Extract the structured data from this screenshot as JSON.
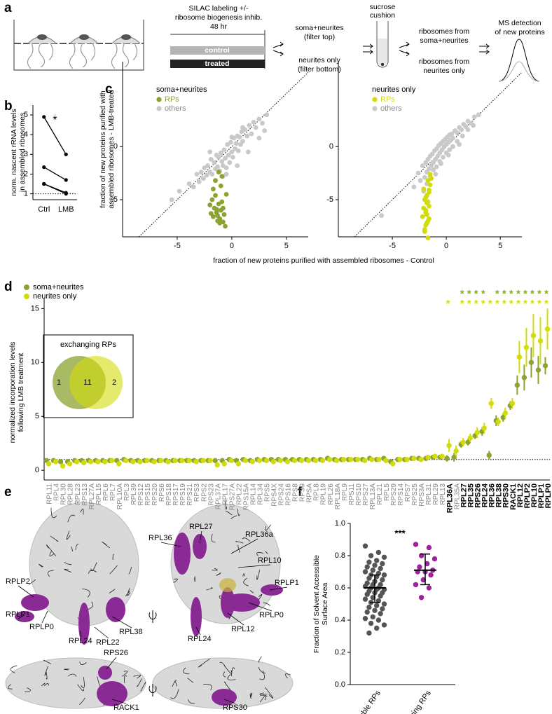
{
  "panel_labels": [
    "a",
    "b",
    "c",
    "d",
    "e",
    "f"
  ],
  "schematic": {
    "labeling": [
      "SILAC labeling +/-",
      "ribosome biogenesis inhib.",
      "48 hr"
    ],
    "conditions": [
      "control",
      "treated"
    ],
    "fractions": [
      [
        "soma+neurites",
        "(filter top)"
      ],
      [
        "neurites only",
        "(filter bottom)"
      ]
    ],
    "cushion": [
      "sucrose",
      "cushion"
    ],
    "ribosomes": [
      [
        "ribosomes from",
        "soma+neurites"
      ],
      [
        "ribosomes from",
        "neurites only"
      ]
    ],
    "detection": [
      "MS detection",
      "of new proteins"
    ]
  },
  "chart_data": [
    {
      "type": "line",
      "y_label": [
        "norm. nascent rRNA levels",
        "in assembled ribosomes"
      ],
      "categories": [
        "Ctrl",
        "LMB"
      ],
      "color": "#000000",
      "series": [
        {
          "values": [
            4.9,
            3.0
          ]
        },
        {
          "values": [
            2.35,
            1.7
          ]
        },
        {
          "values": [
            1.5,
            1.05
          ]
        },
        {
          "values": [
            1.5,
            1.0
          ]
        }
      ],
      "ylim": [
        0.7,
        5.5
      ],
      "yticks": [
        1,
        2,
        3,
        4,
        5
      ],
      "reference_line": 1,
      "annotation": "*"
    },
    {
      "type": "scatter",
      "title": "soma+neurites",
      "x_label": "fraction of new proteins purified with assembled ribosomes - Control",
      "y_label": [
        "fraction of new proteins purified with",
        "assembled ribosomes - LMB-treated"
      ],
      "series": [
        {
          "name": "RPs",
          "color": "#8ba32f",
          "x": [
            -2.0,
            -1.9,
            -1.8,
            -1.7,
            -1.6,
            -1.5,
            -1.4,
            -1.3,
            -1.2,
            -1.1,
            -1.0,
            -0.9,
            -0.8,
            -0.7,
            -0.6,
            -1.5,
            -1.2,
            -0.9,
            -1.7,
            -1.0,
            -0.5,
            -1.3,
            -0.8,
            -1.1,
            -1.4
          ],
          "values": [
            -5.5,
            -6.3,
            -5.0,
            -6.6,
            -5.8,
            -4.6,
            -6.2,
            -7.0,
            -5.4,
            -6.8,
            -6.0,
            -5.2,
            -7.1,
            -6.4,
            -7.5,
            -3.2,
            -2.4,
            -2.8,
            -4.0,
            -3.7,
            -4.5,
            -6.5,
            -5.8,
            -7.2,
            -5.9
          ]
        },
        {
          "name": "others",
          "color": "#c9c9c9",
          "x": [
            -5.5,
            -4.8,
            -3.9,
            -3.5,
            -3.2,
            -3.0,
            -2.8,
            -2.6,
            -2.5,
            -2.3,
            -2.2,
            -2.0,
            -1.9,
            -1.8,
            -1.6,
            -1.5,
            -1.4,
            -1.3,
            -1.2,
            -1.1,
            -1.0,
            -0.9,
            -0.8,
            -0.7,
            -0.6,
            -0.5,
            -0.4,
            -0.3,
            -0.2,
            -0.1,
            0.0,
            0.1,
            0.2,
            0.3,
            0.4,
            0.5,
            0.6,
            0.7,
            0.8,
            0.9,
            1.0,
            1.2,
            1.4,
            1.6,
            1.8,
            2.0,
            2.2,
            2.5,
            2.8,
            3.2,
            1.5,
            0.5,
            -0.5,
            -1.5,
            2.5,
            1.0,
            -2.0,
            0.0,
            3.0,
            -0.8
          ],
          "values": [
            -5.0,
            -4.2,
            -3.5,
            -3.8,
            -2.6,
            -3.3,
            -2.4,
            -3.0,
            -2.0,
            -2.7,
            -1.8,
            -2.4,
            -1.2,
            -2.6,
            -1.5,
            -2.1,
            -0.8,
            -1.9,
            -1.0,
            -2.3,
            -0.6,
            -1.4,
            -1.8,
            -0.3,
            -1.1,
            -2.0,
            0.2,
            -0.8,
            -1.5,
            0.4,
            -0.5,
            -1.0,
            0.8,
            -0.2,
            0.3,
            1.0,
            -0.4,
            0.9,
            0.2,
            1.4,
            0.5,
            1.6,
            1.0,
            2.0,
            1.2,
            2.3,
            1.8,
            2.6,
            2.2,
            3.0,
            -0.5,
            -1.8,
            -2.6,
            -3.2,
            0.8,
            1.8,
            -0.5,
            0.9,
            1.5,
            -2.8
          ]
        }
      ],
      "xlim": [
        -10,
        7
      ],
      "ylim": [
        -8.5,
        8
      ],
      "xticks": [
        -5,
        0,
        5
      ],
      "yticks": [
        -5,
        0
      ],
      "diagonal": true
    },
    {
      "type": "scatter",
      "title": "neurites only",
      "series": [
        {
          "name": "RPs",
          "color": "#d3dc0a",
          "x": [
            -2.1,
            -2.0,
            -1.9,
            -1.8,
            -1.7,
            -1.6,
            -1.5,
            -2.2,
            -1.9,
            -1.7,
            -1.8,
            -2.0,
            -1.6,
            -1.9,
            -1.7,
            -1.5,
            -2.1,
            -1.8,
            -1.6,
            -1.4,
            -1.9,
            -1.7,
            -2.0,
            -1.8,
            -1.6
          ],
          "values": [
            -4.0,
            -5.0,
            -6.2,
            -4.6,
            -7.0,
            -5.6,
            -3.6,
            -6.6,
            -7.4,
            -8.6,
            -5.3,
            -7.8,
            -4.3,
            -6.0,
            -3.2,
            -2.6,
            -5.8,
            -7.2,
            -6.8,
            -3.0,
            -4.8,
            -5.2,
            -8.0,
            -6.4,
            -4.1
          ]
        },
        {
          "name": "others",
          "color": "#c9c9c9",
          "x": [
            -6.0,
            -3.0,
            -2.6,
            -2.4,
            -2.2,
            -2.0,
            -1.9,
            -1.8,
            -1.7,
            -1.6,
            -1.5,
            -1.4,
            -1.3,
            -1.2,
            -1.1,
            -1.0,
            -0.9,
            -0.8,
            -0.7,
            -0.6,
            -0.5,
            -0.4,
            -0.3,
            -0.2,
            -0.1,
            0.0,
            0.1,
            0.2,
            0.3,
            0.4,
            0.5,
            0.6,
            0.8,
            1.0,
            1.2,
            1.4,
            1.6,
            1.8,
            2.0,
            2.3,
            2.6,
            3.0,
            -1.8,
            -1.5,
            -1.2,
            -0.9,
            -0.6,
            -0.3,
            0.0,
            0.3,
            0.6,
            1.0,
            1.5,
            2.0,
            -2.1,
            -1.0,
            0.2,
            1.2,
            2.5,
            -0.5
          ],
          "values": [
            -6.5,
            -3.8,
            -2.5,
            -3.2,
            -1.8,
            -2.9,
            -1.5,
            -2.4,
            -1.2,
            -2.1,
            -0.9,
            -1.8,
            -0.7,
            -1.5,
            -0.4,
            -1.2,
            -0.2,
            -0.9,
            0.1,
            -0.6,
            0.3,
            -0.3,
            0.5,
            0.0,
            0.7,
            0.2,
            0.9,
            0.4,
            1.1,
            0.6,
            1.2,
            0.8,
            1.5,
            1.3,
            1.8,
            1.6,
            2.1,
            1.9,
            2.4,
            2.2,
            2.8,
            3.0,
            -3.5,
            -2.8,
            -2.2,
            -1.9,
            -1.4,
            -1.0,
            -0.6,
            -0.3,
            0.0,
            0.5,
            1.0,
            1.6,
            -4.2,
            -2.6,
            -0.8,
            0.2,
            2.0,
            -1.6
          ]
        }
      ],
      "xlim": [
        -10,
        7
      ],
      "ylim": [
        -8.5,
        8
      ],
      "xticks": [
        -5,
        0,
        5
      ],
      "yticks": [
        -5,
        0
      ],
      "diagonal": true
    },
    {
      "type": "dot",
      "y_label": [
        "normalized incorporation levels",
        "following LMB treatment"
      ],
      "categories": [
        "RPL11",
        "RPL4",
        "RPL30",
        "RPL28",
        "RPL23",
        "RPS13",
        "RPL27A",
        "RPL15",
        "RPL6",
        "RPL7",
        "RPL10A",
        "RPL3",
        "RPL39",
        "RPS12",
        "RPS15",
        "RPS20",
        "RPS6",
        "RPS18",
        "RPS17",
        "RPS19",
        "RPS21",
        "RPS3",
        "RPS2",
        "RPS23",
        "RPL37A",
        "RPL17",
        "RPS27A",
        "RPL22",
        "RPS15A",
        "RPL14",
        "RPL34",
        "RPS5",
        "RPS4X",
        "RPS24",
        "RPS16",
        "RPS8",
        "RPS9",
        "RPSA",
        "RPL8",
        "RPL19",
        "RPL26",
        "RPL18A",
        "RPL9",
        "RPS11",
        "RPS10",
        "RPS27",
        "RPL13A",
        "RPL21",
        "RPL5",
        "RPS29",
        "RPS14",
        "RPS7",
        "RPS25",
        "RPS3A",
        "RPL31",
        "RPL29",
        "RPL13",
        "RPL36A",
        "RPL35A",
        "RPL27",
        "RPL35",
        "RPS26",
        "RPL24",
        "RPL36",
        "RPL38",
        "RPS30",
        "RACK1",
        "RPL12",
        "RPLP2",
        "RPL10",
        "RPLP1",
        "RPLP0"
      ],
      "bold_categories": [
        "RPL36A",
        "RPL27",
        "RPL35",
        "RPS26",
        "RPL24",
        "RPL36",
        "RPL38",
        "RPS30",
        "RACK1",
        "RPL12",
        "RPLP2",
        "RPL10",
        "RPLP1",
        "RPLP0"
      ],
      "series": [
        {
          "name": "soma+neurites",
          "color": "#8ba32f",
          "values": [
            0.9,
            0.9,
            0.8,
            0.8,
            0.9,
            0.9,
            0.9,
            0.9,
            0.9,
            0.9,
            0.9,
            1.0,
            0.9,
            0.9,
            0.9,
            0.9,
            0.9,
            0.9,
            0.9,
            0.9,
            0.9,
            0.9,
            0.9,
            0.9,
            0.9,
            0.9,
            1.0,
            0.9,
            1.0,
            0.9,
            1.0,
            1.0,
            1.0,
            1.0,
            1.0,
            1.0,
            1.0,
            1.0,
            1.0,
            1.0,
            1.1,
            1.0,
            1.0,
            1.0,
            1.0,
            1.0,
            1.1,
            1.0,
            1.1,
            0.8,
            1.0,
            1.0,
            1.1,
            1.1,
            1.1,
            1.2,
            1.2,
            1.1,
            1.2,
            2.4,
            2.6,
            3.2,
            3.6,
            1.4,
            4.6,
            4.9,
            6.0,
            7.9,
            8.6,
            10.0,
            9.3,
            9.7
          ],
          "errors": [
            null,
            null,
            null,
            null,
            null,
            null,
            null,
            null,
            null,
            null,
            null,
            null,
            null,
            null,
            null,
            null,
            null,
            null,
            null,
            null,
            null,
            null,
            null,
            null,
            null,
            null,
            null,
            null,
            null,
            null,
            null,
            null,
            null,
            null,
            null,
            null,
            null,
            null,
            null,
            null,
            null,
            null,
            null,
            null,
            null,
            null,
            null,
            null,
            null,
            null,
            null,
            null,
            null,
            null,
            null,
            null,
            null,
            0.3,
            0.4,
            0.3,
            0.3,
            0.3,
            0.4,
            0.4,
            0.5,
            0.4,
            0.4,
            0.9,
            1.2,
            1.4,
            1.3,
            0.8
          ],
          "significant": [
            "RPL27",
            "RPL35",
            "RPS26",
            "RPL24",
            "RPL38",
            "RPS30",
            "RACK1",
            "RPL12",
            "RPLP2",
            "RPL10",
            "RPLP1",
            "RPLP0"
          ]
        },
        {
          "name": "neurites only",
          "color": "#d3dc0a",
          "values": [
            0.6,
            0.8,
            0.4,
            0.6,
            0.8,
            0.7,
            0.8,
            0.8,
            0.8,
            0.9,
            0.6,
            0.9,
            0.8,
            0.8,
            0.9,
            0.8,
            0.9,
            0.8,
            0.9,
            0.9,
            0.9,
            0.8,
            0.9,
            0.9,
            0.5,
            0.6,
            0.9,
            0.6,
            0.9,
            0.8,
            0.9,
            0.9,
            0.8,
            0.9,
            0.8,
            0.9,
            0.9,
            0.9,
            0.9,
            0.9,
            1.0,
            0.9,
            1.0,
            1.0,
            1.0,
            0.9,
            1.0,
            1.0,
            0.9,
            0.6,
            1.0,
            1.0,
            1.1,
            1.0,
            1.2,
            1.3,
            1.3,
            2.3,
            1.8,
            2.6,
            3.0,
            3.5,
            3.9,
            6.2,
            4.5,
            5.3,
            6.2,
            10.5,
            11.4,
            12.5,
            12.0,
            13.1
          ],
          "errors": [
            null,
            null,
            null,
            null,
            null,
            null,
            null,
            null,
            null,
            null,
            null,
            null,
            null,
            null,
            null,
            null,
            null,
            null,
            null,
            null,
            null,
            null,
            null,
            null,
            null,
            null,
            null,
            null,
            null,
            null,
            null,
            null,
            null,
            null,
            null,
            null,
            null,
            null,
            null,
            null,
            null,
            null,
            null,
            null,
            null,
            null,
            null,
            null,
            null,
            null,
            null,
            null,
            null,
            null,
            null,
            null,
            null,
            0.6,
            0.5,
            0.4,
            0.4,
            0.5,
            0.5,
            0.5,
            0.4,
            0.5,
            0.5,
            1.5,
            1.8,
            2.0,
            2.2,
            1.9
          ],
          "significant": [
            "RPL36A",
            "RPL27",
            "RPL35",
            "RPS26",
            "RPL24",
            "RPL36",
            "RPL38",
            "RPS30",
            "RACK1",
            "RPL12",
            "RPLP2",
            "RPL10",
            "RPLP1",
            "RPLP0"
          ]
        }
      ],
      "significance_label": "*",
      "ylim": [
        -0.9,
        16
      ],
      "yticks": [
        0,
        5,
        10,
        15
      ],
      "reference_line": 1,
      "venn": {
        "title": "exchanging RPs",
        "counts": [
          1,
          11,
          2
        ]
      }
    },
    {
      "type": "strip",
      "y_label": [
        "Fraction of Solvent Accessible",
        "Surface Area"
      ],
      "categories": [
        "stable RPs",
        "exchanging RPs"
      ],
      "series": [
        {
          "color": "#555555",
          "values": [
            0.86,
            0.82,
            0.8,
            0.79,
            0.77,
            0.76,
            0.75,
            0.74,
            0.73,
            0.72,
            0.71,
            0.7,
            0.69,
            0.68,
            0.68,
            0.67,
            0.66,
            0.65,
            0.64,
            0.63,
            0.62,
            0.62,
            0.61,
            0.6,
            0.6,
            0.59,
            0.59,
            0.58,
            0.57,
            0.57,
            0.56,
            0.55,
            0.54,
            0.53,
            0.52,
            0.51,
            0.5,
            0.49,
            0.48,
            0.47,
            0.46,
            0.45,
            0.44,
            0.42,
            0.41,
            0.4,
            0.38,
            0.37,
            0.35,
            0.32
          ],
          "center": 0.6,
          "lower": 0.51,
          "upper": 0.68
        },
        {
          "color": "#a0209e",
          "values": [
            0.87,
            0.85,
            0.8,
            0.78,
            0.75,
            0.73,
            0.71,
            0.7,
            0.7,
            0.68,
            0.65,
            0.62,
            0.6,
            0.54
          ],
          "center": 0.71,
          "lower": 0.62,
          "upper": 0.81
        }
      ],
      "ylim": [
        0,
        1
      ],
      "yticks": [
        {
          "value": 0,
          "label": "0.0"
        },
        {
          "value": 0.2,
          "label": "0.2"
        },
        {
          "value": 0.4,
          "label": "0.4"
        },
        {
          "value": 0.6,
          "label": "0.6"
        },
        {
          "value": 0.8,
          "label": "0.8"
        },
        {
          "value": 1,
          "label": "1.0"
        }
      ],
      "annotation": "***"
    }
  ],
  "structures": {
    "labels": [
      "RPLP2",
      "RPLP1",
      "RPLP0",
      "RPL24",
      "RPL22",
      "RPL38",
      "RPL36",
      "RPL27",
      "RPL36a",
      "RPL10",
      "RPLP1",
      "RPLP0",
      "RPL12",
      "RPL24",
      "RPS26",
      "RACK1",
      "RPS30"
    ]
  }
}
